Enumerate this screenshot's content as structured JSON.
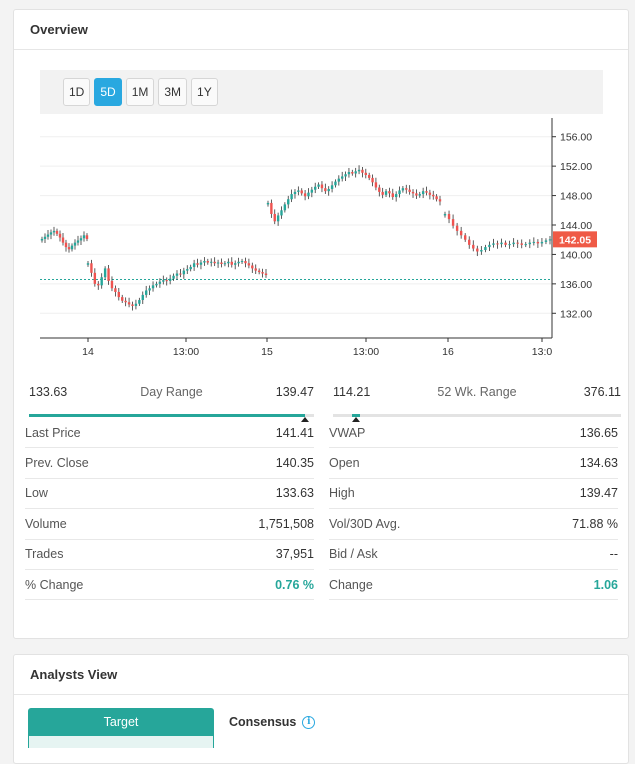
{
  "overview": {
    "title": "Overview"
  },
  "timeframes": [
    {
      "label": "1D",
      "active": false
    },
    {
      "label": "5D",
      "active": true
    },
    {
      "label": "1M",
      "active": false
    },
    {
      "label": "3M",
      "active": false
    },
    {
      "label": "1Y",
      "active": false
    }
  ],
  "chart_data": {
    "type": "candlestick",
    "x_tick_labels": [
      "14",
      "13:00",
      "15",
      "13:00",
      "16",
      "13:0"
    ],
    "y_tick_labels": [
      "156.00",
      "152.00",
      "148.00",
      "144.00",
      "140.00",
      "136.00",
      "132.00"
    ],
    "ylim": [
      130,
      158
    ],
    "current_price_label": "142.05",
    "current_price": 142.05,
    "prev_close_line": 136.6,
    "grid": true,
    "colors": {
      "up": "#26a69a",
      "down": "#ef5350",
      "neutral": "#333333",
      "price_tag": "#ef5a46",
      "ref_line": "#26a69a"
    },
    "series": [
      {
        "values": [
          142.1,
          142.4,
          142.7,
          143.0,
          143.2,
          142.8,
          142.3,
          141.6,
          141.0,
          140.7,
          141.2,
          141.6,
          141.9,
          142.2,
          142.6,
          142.1
        ]
      },
      {
        "values": [
          138.8,
          137.5,
          136.0,
          135.8,
          136.9,
          138.1,
          136.4,
          135.4,
          134.9,
          134.2,
          133.7,
          133.5,
          133.2,
          133.0,
          133.3,
          133.8,
          134.5,
          135.1,
          135.4,
          135.8,
          136.0,
          136.3,
          136.5,
          136.4,
          136.7,
          137.1,
          137.4,
          137.3,
          137.8,
          138.0,
          138.3,
          138.8,
          138.6,
          138.9,
          139.1,
          138.9,
          139.0,
          138.8,
          138.9,
          138.7,
          138.8,
          139.0,
          138.6,
          138.8,
          139.0,
          139.1,
          138.8,
          138.5,
          138.1,
          137.8,
          137.6,
          137.4,
          137.2
        ]
      },
      {
        "values": [
          147.0,
          145.5,
          144.5,
          145.3,
          146.0,
          146.8,
          147.5,
          148.2,
          148.5,
          148.7,
          148.3,
          147.9,
          148.4,
          148.8,
          149.2,
          149.5,
          149.0,
          148.6,
          148.9,
          149.4,
          149.9,
          150.3,
          150.6,
          150.9,
          151.2,
          151.0,
          151.3,
          151.5,
          151.1,
          150.8,
          150.4,
          149.8,
          149.1,
          148.5,
          148.1,
          148.6,
          148.3,
          147.8,
          148.2,
          148.7,
          149.0,
          148.8,
          148.5,
          148.3,
          148.0,
          148.2,
          148.6,
          148.4,
          148.1,
          147.9,
          147.5,
          147.2
        ]
      },
      {
        "values": [
          145.5,
          144.8,
          143.9,
          143.2,
          142.6,
          142.0,
          141.3,
          140.8,
          140.4,
          140.6,
          141.0,
          141.3,
          141.5,
          141.4,
          141.6,
          141.3,
          141.4,
          141.6,
          141.5,
          141.3,
          141.4,
          141.6,
          141.7,
          141.5,
          141.7,
          141.9,
          142.05
        ]
      }
    ]
  },
  "day_range": {
    "low": "133.63",
    "label": "Day Range",
    "high": "139.47",
    "position": 0.97
  },
  "week52_range": {
    "low": "114.21",
    "label": "52 Wk. Range",
    "high": "376.11",
    "position": 0.08
  },
  "stats_left": [
    {
      "label": "Last Price",
      "value": "141.41"
    },
    {
      "label": "Prev. Close",
      "value": "140.35"
    },
    {
      "label": "Low",
      "value": "133.63"
    },
    {
      "label": "Volume",
      "value": "1,751,508"
    },
    {
      "label": "Trades",
      "value": "37,951"
    },
    {
      "label": "% Change",
      "value": "0.76 %"
    }
  ],
  "stats_right": [
    {
      "label": "VWAP",
      "value": "136.65"
    },
    {
      "label": "Open",
      "value": "134.63"
    },
    {
      "label": "High",
      "value": "139.47"
    },
    {
      "label": "Vol/30D Avg.",
      "value": "71.88 %"
    },
    {
      "label": "Bid / Ask",
      "value": "--"
    },
    {
      "label": "Change",
      "value": "1.06"
    }
  ],
  "analysts": {
    "title": "Analysts View",
    "tab_target": "Target",
    "tab_consensus": "Consensus",
    "info_icon": "info-icon"
  }
}
